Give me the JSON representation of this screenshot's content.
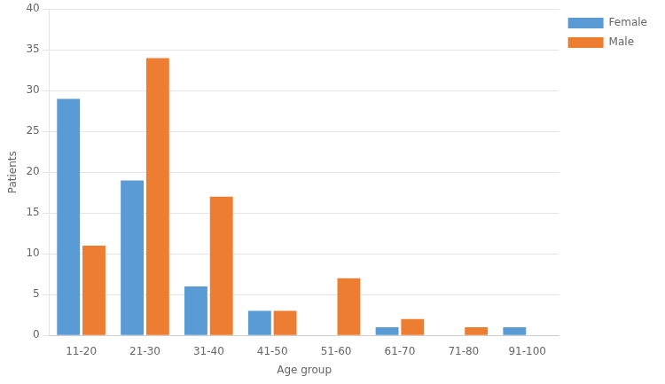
{
  "chart_data": {
    "type": "bar",
    "categories": [
      "11-20",
      "21-30",
      "31-40",
      "41-50",
      "51-60",
      "61-70",
      "71-80",
      "91-100"
    ],
    "series": [
      {
        "name": "Female",
        "color": "#5B9BD5",
        "values": [
          29,
          19,
          6,
          3,
          0,
          1,
          0,
          1
        ]
      },
      {
        "name": "Male",
        "color": "#ED7D31",
        "values": [
          11,
          34,
          17,
          3,
          7,
          2,
          1,
          0
        ]
      }
    ],
    "xlabel": "Age group",
    "ylabel": "Patients",
    "ylim": [
      0,
      40
    ],
    "yticks": [
      0,
      5,
      10,
      15,
      20,
      25,
      30,
      35,
      40
    ],
    "grid": true,
    "legend": "right"
  }
}
